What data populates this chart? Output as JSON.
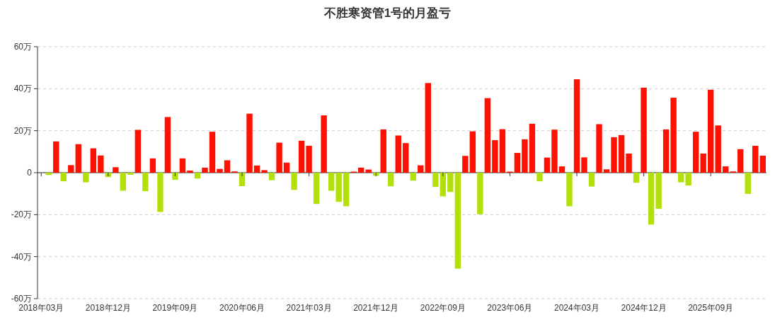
{
  "chart_data": {
    "type": "bar",
    "title": "不胜寒资管1号的月盈亏",
    "categories": [
      "2018年03月",
      null,
      null,
      null,
      null,
      null,
      null,
      null,
      null,
      "2018年12月",
      null,
      null,
      null,
      null,
      null,
      null,
      null,
      null,
      "2019年09月",
      null,
      null,
      null,
      null,
      null,
      null,
      null,
      null,
      "2020年06月",
      null,
      null,
      null,
      null,
      null,
      null,
      null,
      null,
      "2021年03月",
      null,
      null,
      null,
      null,
      null,
      null,
      null,
      null,
      "2021年12月",
      null,
      null,
      null,
      null,
      null,
      null,
      null,
      null,
      "2022年09月",
      null,
      null,
      null,
      null,
      null,
      null,
      null,
      null,
      "2023年06月",
      null,
      null,
      null,
      null,
      null,
      null,
      null,
      null,
      "2024年03月",
      null,
      null,
      null,
      null,
      null,
      null,
      null,
      null,
      "2024年12月",
      null,
      null,
      null,
      null,
      null,
      null,
      null,
      null,
      "2025年09月",
      null,
      null,
      null,
      null,
      null,
      null,
      null
    ],
    "values": [
      null,
      -1.1,
      14.9,
      -4.1,
      3.6,
      13.6,
      -4.6,
      11.6,
      8.2,
      -2.1,
      2.6,
      -8.6,
      -1.0,
      20.4,
      -8.8,
      6.8,
      -18.7,
      26.5,
      -3.4,
      6.8,
      1.0,
      -2.8,
      2.4,
      19.5,
      1.8,
      5.9,
      0.6,
      -6.4,
      28.1,
      3.4,
      1.2,
      -3.6,
      14.3,
      4.8,
      -8.2,
      15.2,
      12.8,
      -14.9,
      27.3,
      -8.6,
      -13.9,
      -16.0,
      0.5,
      2.4,
      1.5,
      -1.5,
      20.6,
      -6.5,
      17.7,
      14.1,
      -3.8,
      3.5,
      42.7,
      -6.8,
      -11.3,
      -9.2,
      -45.7,
      8.0,
      19.7,
      -19.8,
      35.5,
      15.5,
      20.7,
      0.5,
      9.4,
      15.9,
      23.3,
      -4.1,
      7.2,
      20.5,
      3.0,
      -16.0,
      44.5,
      7.3,
      -6.6,
      23.1,
      1.6,
      16.9,
      17.9,
      9.1,
      -4.8,
      40.5,
      -24.7,
      -17.2,
      20.6,
      35.7,
      -4.6,
      -6.1,
      19.5,
      9.1,
      39.5,
      22.5,
      3.0,
      0.6,
      11.2,
      -10.1,
      12.8,
      8.1
    ],
    "colors": [
      null,
      "#b3e00b",
      "#ff1100",
      "#b3e00b",
      "#ff1100",
      "#ff1100",
      "#b3e00b",
      "#ff1100",
      "#ff1100",
      "#b3e00b",
      "#ff1100",
      "#b3e00b",
      "#b3e00b",
      "#ff1100",
      "#b3e00b",
      "#ff1100",
      "#b3e00b",
      "#ff1100",
      "#b3e00b",
      "#ff1100",
      "#ff1100",
      "#b3e00b",
      "#ff1100",
      "#ff1100",
      "#ff1100",
      "#ff1100",
      "#ff1100",
      "#b3e00b",
      "#ff1100",
      "#ff1100",
      "#ff1100",
      "#b3e00b",
      "#ff1100",
      "#ff1100",
      "#b3e00b",
      "#ff1100",
      "#ff1100",
      "#b3e00b",
      "#ff1100",
      "#b3e00b",
      "#b3e00b",
      "#b3e00b",
      "#ff1100",
      "#ff1100",
      "#ff1100",
      "#b3e00b",
      "#ff1100",
      "#b3e00b",
      "#ff1100",
      "#ff1100",
      "#b3e00b",
      "#ff1100",
      "#ff1100",
      "#b3e00b",
      "#b3e00b",
      "#b3e00b",
      "#b3e00b",
      "#ff1100",
      "#ff1100",
      "#b3e00b",
      "#ff1100",
      "#ff1100",
      "#ff1100",
      "#ff1100",
      "#ff1100",
      "#ff1100",
      "#ff1100",
      "#b3e00b",
      "#ff1100",
      "#ff1100",
      "#ff1100",
      "#b3e00b",
      "#ff1100",
      "#ff1100",
      "#b3e00b",
      "#ff1100",
      "#ff1100",
      "#ff1100",
      "#ff1100",
      "#ff1100",
      "#b3e00b",
      "#ff1100",
      "#b3e00b",
      "#b3e00b",
      "#ff1100",
      "#ff1100",
      "#b3e00b",
      "#b3e00b",
      "#ff1100",
      "#ff1100",
      "#ff1100",
      "#ff1100",
      "#ff1100",
      "#ff1100",
      "#ff1100",
      "#b3e00b",
      "#ff1100",
      "#ff1100"
    ],
    "ylim": [
      -60,
      60
    ],
    "yticks": [
      {
        "value": -60,
        "label": "-60万"
      },
      {
        "value": -40,
        "label": "-40万"
      },
      {
        "value": -20,
        "label": "-20万"
      },
      0,
      {
        "value": 20,
        "label": "20万"
      },
      {
        "value": 40,
        "label": "40万"
      },
      {
        "value": 60,
        "label": "60万"
      }
    ],
    "grid": "y"
  }
}
